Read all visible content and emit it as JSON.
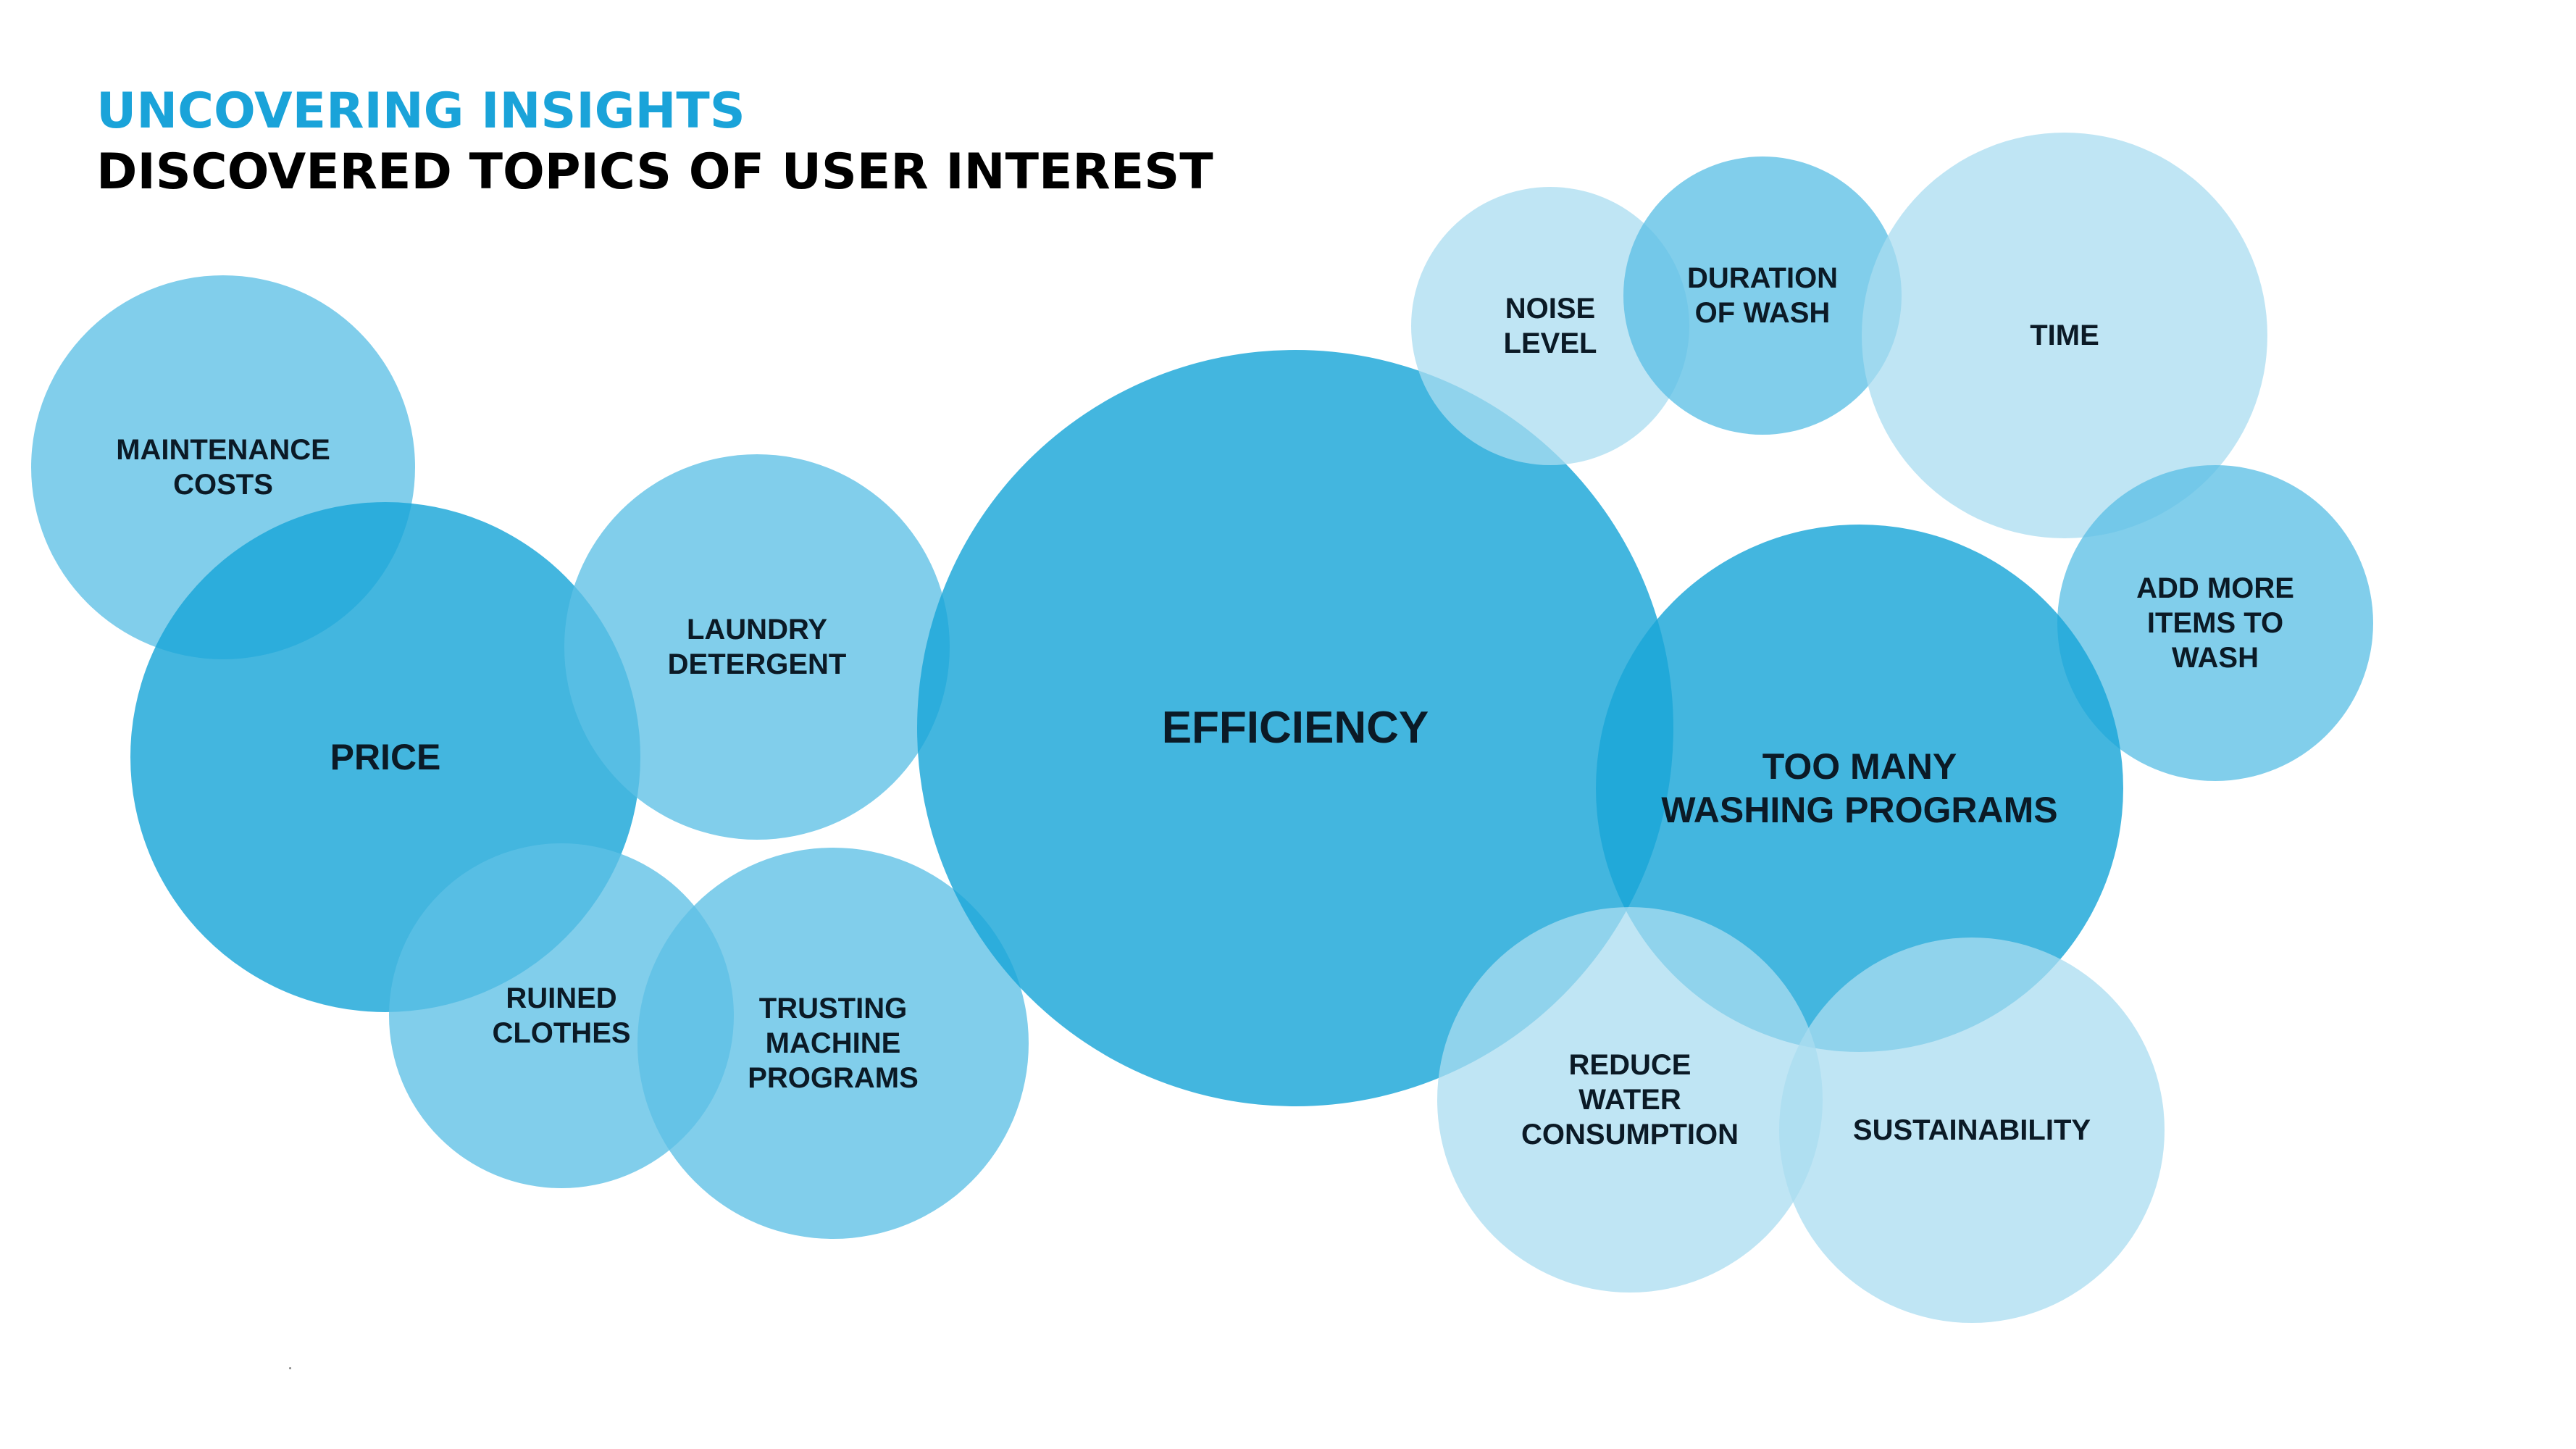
{
  "header": {
    "title": "UNCOVERING INSIGHTS",
    "subtitle": "DISCOVERED TOPICS OF USER INTEREST"
  },
  "colors": {
    "accent": "#1aa3d9",
    "dark_bubble": "#1aa6d8",
    "mid_bubble": "#5ec0e5",
    "light_bubble": "#a9dcf0",
    "text": "#0b1a26"
  },
  "bubbles": [
    {
      "id": "maintenance-costs",
      "label": "MAINTENANCE\nCOSTS",
      "shade": "mid"
    },
    {
      "id": "price",
      "label": "PRICE",
      "shade": "dark"
    },
    {
      "id": "laundry-detergent",
      "label": "LAUNDRY\nDETERGENT",
      "shade": "mid"
    },
    {
      "id": "ruined-clothes",
      "label": "RUINED\nCLOTHES",
      "shade": "mid"
    },
    {
      "id": "trusting-machine-programs",
      "label": "TRUSTING\nMACHINE\nPROGRAMS",
      "shade": "mid"
    },
    {
      "id": "efficiency",
      "label": "EFFICIENCY",
      "shade": "dark"
    },
    {
      "id": "noise-level",
      "label": "NOISE\nLEVEL",
      "shade": "light"
    },
    {
      "id": "duration-of-wash",
      "label": "DURATION\nOF WASH",
      "shade": "mid"
    },
    {
      "id": "time",
      "label": "TIME",
      "shade": "light"
    },
    {
      "id": "add-more-items-to-wash",
      "label": "ADD MORE\nITEMS TO\nWASH",
      "shade": "mid"
    },
    {
      "id": "too-many-washing-programs",
      "label": "TOO MANY\nWASHING PROGRAMS",
      "shade": "dark"
    },
    {
      "id": "reduce-water-consumption",
      "label": "REDUCE\nWATER\nCONSUMPTION",
      "shade": "light"
    },
    {
      "id": "sustainability",
      "label": "SUSTAINABILITY",
      "shade": "light"
    }
  ]
}
